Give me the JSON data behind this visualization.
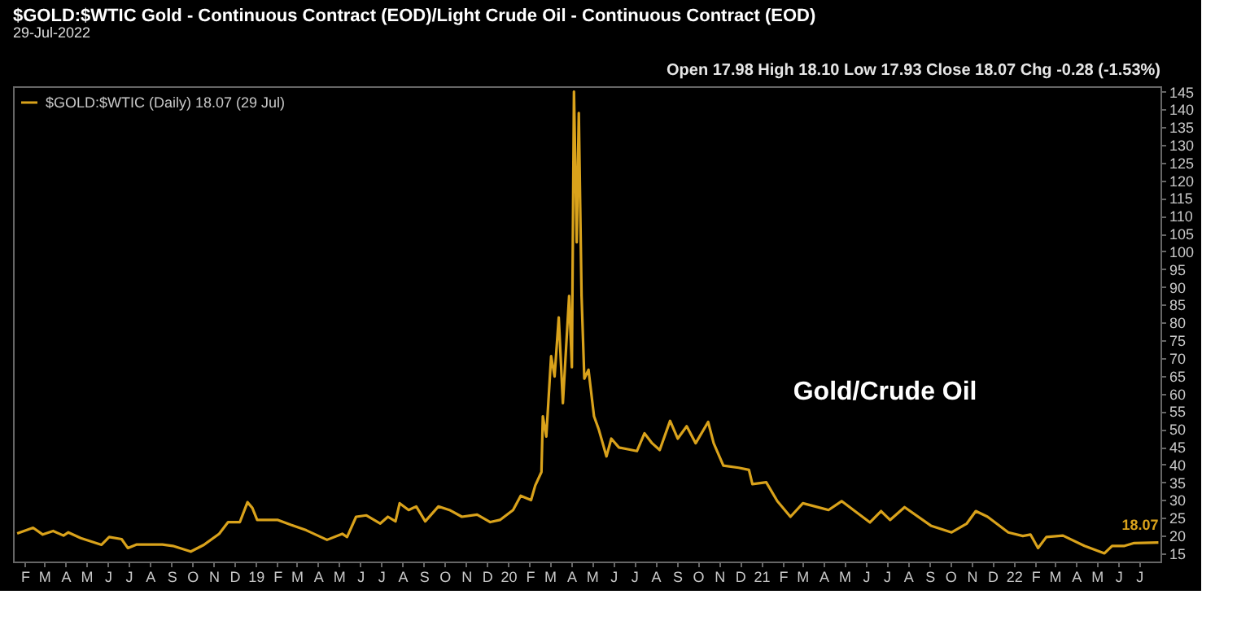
{
  "chart_data": {
    "type": "line",
    "title": "$GOLD:$WTIC Gold - Continuous Contract (EOD)/Light Crude Oil - Continuous Contract (EOD)",
    "subtitle": "29-Jul-2022",
    "annotations": [
      "Open 17.98 High 18.10 Low 17.93 Close 18.07 Chg -0.28 (-1.53%)",
      "Gold/Crude Oil",
      {
        "text": "18.07",
        "x": "2022-07-29",
        "y": 18.07
      }
    ],
    "legend": "top left",
    "grid": false,
    "marker": "none",
    "line_style": "solid",
    "xlim": [
      "2018-01-15",
      "2022-08-01"
    ],
    "ylim": [
      12.7,
      146.5
    ],
    "yticks": [
      15,
      20,
      25,
      30,
      35,
      40,
      45,
      50,
      55,
      60,
      65,
      70,
      75,
      80,
      85,
      90,
      95,
      100,
      105,
      110,
      115,
      120,
      125,
      130,
      135,
      140,
      145
    ],
    "xticks": [
      {
        "value": "2018-02-01",
        "label": "F"
      },
      {
        "value": "2018-03-01",
        "label": "M"
      },
      {
        "value": "2018-04-01",
        "label": "A"
      },
      {
        "value": "2018-05-01",
        "label": "M"
      },
      {
        "value": "2018-06-01",
        "label": "J"
      },
      {
        "value": "2018-07-01",
        "label": "J"
      },
      {
        "value": "2018-08-01",
        "label": "A"
      },
      {
        "value": "2018-09-01",
        "label": "S"
      },
      {
        "value": "2018-10-01",
        "label": "O"
      },
      {
        "value": "2018-11-01",
        "label": "N"
      },
      {
        "value": "2018-12-01",
        "label": "D"
      },
      {
        "value": "2019-01-01",
        "label": "19"
      },
      {
        "value": "2019-02-01",
        "label": "F"
      },
      {
        "value": "2019-03-01",
        "label": "M"
      },
      {
        "value": "2019-04-01",
        "label": "A"
      },
      {
        "value": "2019-05-01",
        "label": "M"
      },
      {
        "value": "2019-06-01",
        "label": "J"
      },
      {
        "value": "2019-07-01",
        "label": "J"
      },
      {
        "value": "2019-08-01",
        "label": "A"
      },
      {
        "value": "2019-09-01",
        "label": "S"
      },
      {
        "value": "2019-10-01",
        "label": "O"
      },
      {
        "value": "2019-11-01",
        "label": "N"
      },
      {
        "value": "2019-12-01",
        "label": "D"
      },
      {
        "value": "2020-01-01",
        "label": "20"
      },
      {
        "value": "2020-02-01",
        "label": "F"
      },
      {
        "value": "2020-03-01",
        "label": "M"
      },
      {
        "value": "2020-04-01",
        "label": "A"
      },
      {
        "value": "2020-05-01",
        "label": "M"
      },
      {
        "value": "2020-06-01",
        "label": "J"
      },
      {
        "value": "2020-07-01",
        "label": "J"
      },
      {
        "value": "2020-08-01",
        "label": "A"
      },
      {
        "value": "2020-09-01",
        "label": "S"
      },
      {
        "value": "2020-10-01",
        "label": "O"
      },
      {
        "value": "2020-11-01",
        "label": "N"
      },
      {
        "value": "2020-12-01",
        "label": "D"
      },
      {
        "value": "2021-01-01",
        "label": "21"
      },
      {
        "value": "2021-02-01",
        "label": "F"
      },
      {
        "value": "2021-03-01",
        "label": "M"
      },
      {
        "value": "2021-04-01",
        "label": "A"
      },
      {
        "value": "2021-05-01",
        "label": "M"
      },
      {
        "value": "2021-06-01",
        "label": "J"
      },
      {
        "value": "2021-07-01",
        "label": "J"
      },
      {
        "value": "2021-08-01",
        "label": "A"
      },
      {
        "value": "2021-09-01",
        "label": "S"
      },
      {
        "value": "2021-10-01",
        "label": "O"
      },
      {
        "value": "2021-11-01",
        "label": "N"
      },
      {
        "value": "2021-12-01",
        "label": "D"
      },
      {
        "value": "2022-01-01",
        "label": "22"
      },
      {
        "value": "2022-02-01",
        "label": "F"
      },
      {
        "value": "2022-03-01",
        "label": "M"
      },
      {
        "value": "2022-04-01",
        "label": "A"
      },
      {
        "value": "2022-05-01",
        "label": "M"
      },
      {
        "value": "2022-06-01",
        "label": "J"
      },
      {
        "value": "2022-07-01",
        "label": "J"
      }
    ],
    "series": [
      {
        "name": "$GOLD:$WTIC (Daily) 18.07 (29 Jul)",
        "color": "#d9a21b",
        "x": [
          "2018-01-21",
          "2018-02-13",
          "2018-02-27",
          "2018-03-14",
          "2018-03-29",
          "2018-04-05",
          "2018-04-23",
          "2018-05-23",
          "2018-06-03",
          "2018-06-21",
          "2018-06-30",
          "2018-07-13",
          "2018-08-19",
          "2018-09-03",
          "2018-09-29",
          "2018-10-18",
          "2018-11-09",
          "2018-11-22",
          "2018-12-09",
          "2018-12-20",
          "2018-12-27",
          "2019-01-03",
          "2019-02-02",
          "2019-02-21",
          "2019-03-15",
          "2019-04-14",
          "2019-05-06",
          "2019-05-13",
          "2019-05-26",
          "2019-06-10",
          "2019-06-30",
          "2019-07-11",
          "2019-07-22",
          "2019-07-28",
          "2019-08-10",
          "2019-08-21",
          "2019-09-03",
          "2019-09-22",
          "2019-10-08",
          "2019-10-26",
          "2019-11-17",
          "2019-12-06",
          "2019-12-20",
          "2020-01-08",
          "2020-01-19",
          "2020-02-03",
          "2020-02-09",
          "2020-02-18",
          "2020-02-20",
          "2020-02-25",
          "2020-03-03",
          "2020-03-08",
          "2020-03-14",
          "2020-03-20",
          "2020-03-29",
          "2020-04-02",
          "2020-04-05",
          "2020-04-09",
          "2020-04-12",
          "2020-04-16",
          "2020-04-20",
          "2020-04-26",
          "2020-05-04",
          "2020-05-11",
          "2020-05-22",
          "2020-05-29",
          "2020-06-09",
          "2020-07-05",
          "2020-07-16",
          "2020-07-27",
          "2020-08-07",
          "2020-08-22",
          "2020-09-02",
          "2020-09-15",
          "2020-09-28",
          "2020-10-16",
          "2020-10-24",
          "2020-11-07",
          "2020-11-29",
          "2020-12-14",
          "2020-12-19",
          "2021-01-08",
          "2021-01-24",
          "2021-02-12",
          "2021-03-02",
          "2021-04-08",
          "2021-04-27",
          "2021-06-07",
          "2021-06-23",
          "2021-07-06",
          "2021-07-27",
          "2021-09-03",
          "2021-10-03",
          "2021-10-25",
          "2021-11-07",
          "2021-11-24",
          "2021-12-24",
          "2022-01-14",
          "2022-01-25",
          "2022-02-05",
          "2022-02-17",
          "2022-03-13",
          "2022-04-13",
          "2022-05-12",
          "2022-05-23",
          "2022-06-10",
          "2022-06-24",
          "2022-07-29"
        ],
        "values": [
          20.6,
          22.2,
          20.3,
          21.3,
          20.0,
          20.9,
          19.3,
          17.4,
          19.6,
          19.0,
          16.5,
          17.5,
          17.5,
          17.1,
          15.5,
          17.4,
          20.5,
          23.8,
          23.8,
          29.4,
          27.8,
          24.4,
          24.4,
          23.0,
          21.5,
          18.8,
          20.5,
          19.6,
          25.3,
          25.7,
          23.4,
          25.3,
          24.0,
          29.1,
          27.2,
          28.2,
          24.0,
          28.2,
          27.2,
          25.3,
          25.9,
          23.8,
          24.4,
          27.2,
          31.2,
          30.0,
          34.1,
          37.9,
          53.6,
          47.9,
          70.5,
          64.8,
          81.4,
          57.3,
          87.5,
          67.4,
          145,
          102.6,
          139.0,
          87.5,
          64.2,
          66.7,
          53.6,
          49.8,
          42.3,
          47.3,
          44.8,
          43.8,
          48.8,
          46.0,
          44.1,
          52.3,
          47.3,
          50.8,
          46.0,
          52.0,
          46.0,
          39.7,
          39.1,
          38.5,
          34.5,
          35.0,
          29.7,
          25.3,
          29.1,
          27.2,
          29.7,
          23.7,
          26.9,
          24.4,
          28.0,
          22.8,
          20.9,
          23.4,
          26.9,
          25.3,
          20.9,
          19.9,
          20.3,
          16.5,
          19.6,
          20.0,
          17.1,
          15.0,
          17.1,
          17.1,
          17.9,
          18.07
        ]
      }
    ]
  }
}
